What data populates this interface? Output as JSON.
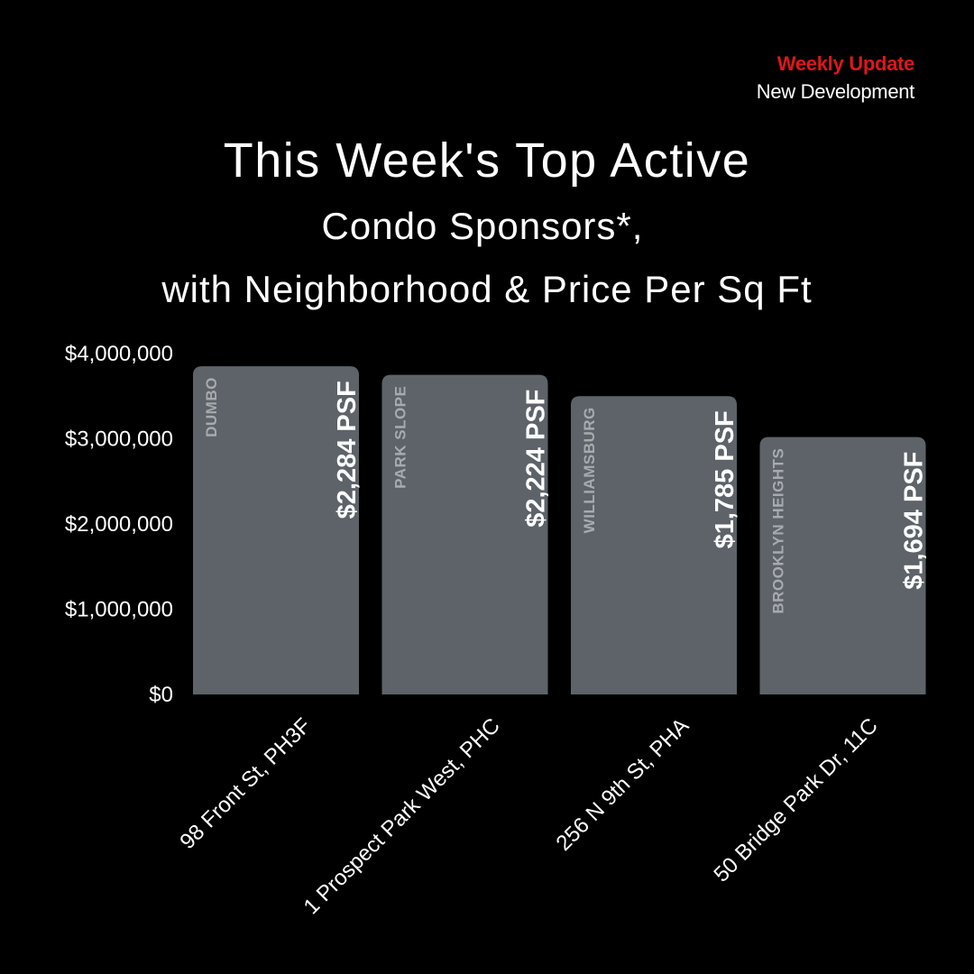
{
  "header": {
    "badge": "Weekly Update",
    "subtitle": "New Development"
  },
  "title": {
    "line1": "This Week's Top Active",
    "line2": "Condo Sponsors*,",
    "line3": "with Neighborhood & Price Per Sq Ft"
  },
  "colors": {
    "background": "#000000",
    "bar": "#5d6368",
    "accent": "#e0161b",
    "neighborhood_text": "#a7abaf",
    "text": "#ffffff"
  },
  "chart_data": {
    "type": "bar",
    "categories": [
      "98 Front St, PH3F",
      "1 Prospect Park West, PHC",
      "256 N 9th St, PHA",
      "50 Bridge Park Dr, 11C"
    ],
    "values": [
      3850000,
      3750000,
      3500000,
      3020000
    ],
    "neighborhoods": [
      "DUMBO",
      "PARK SLOPE",
      "WILLIAMSBURG",
      "BROOKLYN HEIGHTS"
    ],
    "psf_labels": [
      "$2,284 PSF",
      "$2,224 PSF",
      "$1,785 PSF",
      "$1,694 PSF"
    ],
    "ylim": [
      0,
      4000000
    ],
    "yticks": [
      0,
      1000000,
      2000000,
      3000000,
      4000000
    ],
    "ytick_labels": [
      "$0",
      "$1,000,000",
      "$2,000,000",
      "$3,000,000",
      "$4,000,000"
    ],
    "grid": false,
    "legend": "none"
  }
}
